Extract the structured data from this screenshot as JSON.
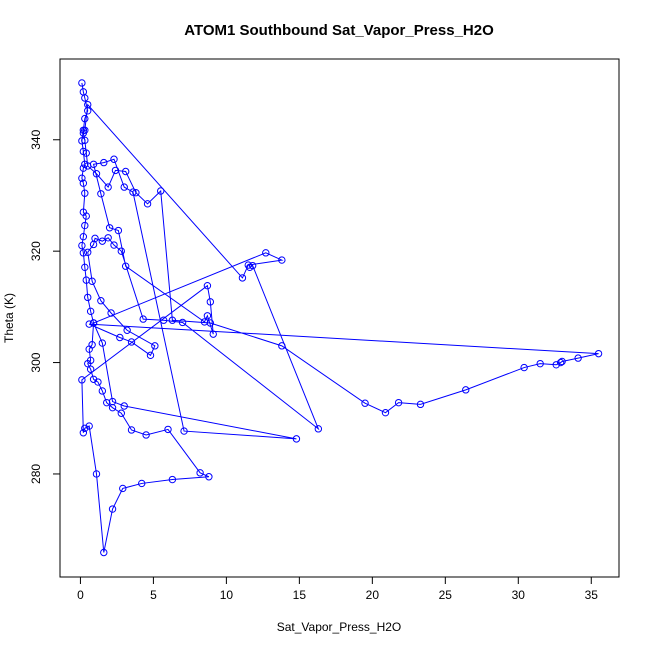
{
  "chart_data": {
    "type": "line",
    "title": "ATOM1 Southbound Sat_Vapor_Press_H2O",
    "xlabel": "Sat_Vapor_Press_H2O",
    "ylabel": "Theta (K)",
    "xlim": [
      -1.4,
      36.9
    ],
    "ylim": [
      261.5,
      354.5
    ],
    "xticks": [
      0,
      5,
      10,
      15,
      20,
      25,
      30,
      35
    ],
    "yticks": [
      280,
      300,
      320,
      340
    ],
    "grid": false,
    "legend": "none",
    "colors": {
      "series": "#0000ff",
      "axes": "#000000"
    },
    "series": [
      {
        "markers": "open-circle",
        "x": [
          0.1,
          0.2,
          0.3,
          0.5,
          0.3,
          0.2,
          0.1,
          0.2,
          0.3,
          0.2,
          0.1,
          0.2,
          0.3,
          0.2,
          0.4,
          0.3,
          0.2,
          0.1,
          0.2,
          0.3,
          0.4,
          0.5,
          0.7,
          0.9,
          0.8,
          0.6,
          0.7,
          0.5,
          0.7,
          0.9,
          1.2,
          1.5,
          1.8,
          2.2,
          2.8,
          3.5,
          4.5,
          6.0,
          8.2,
          8.8,
          6.3,
          4.2,
          2.9,
          2.2,
          1.6,
          1.1,
          0.6,
          0.3,
          0.2,
          0.1,
          8.7,
          8.9,
          9.1,
          8.7,
          8.5,
          3.1,
          2.6,
          2.0,
          1.4,
          0.9,
          1.6,
          2.3,
          3.0,
          3.6,
          7.1,
          14.8,
          3.0,
          2.2,
          1.5,
          0.9,
          12.7,
          13.8,
          11.5,
          11.1,
          0.5,
          0.3,
          0.2,
          0.3,
          0.4,
          0.5,
          1.1,
          1.9,
          2.4,
          3.1,
          3.8,
          4.6,
          5.5,
          6.3,
          8.9,
          13.8,
          19.5,
          20.9,
          21.8,
          23.3,
          26.4,
          30.4,
          31.5,
          32.6,
          32.9,
          33.0,
          34.1,
          35.5,
          0.6,
          2.7,
          3.5,
          4.8,
          5.1,
          3.2,
          2.1,
          1.4,
          0.8,
          0.5,
          0.9,
          1.0,
          1.5,
          1.9,
          2.3,
          2.8,
          4.3,
          5.7,
          7.0,
          16.3,
          11.8,
          11.6
        ],
        "y": [
          350.2,
          348.6,
          347.5,
          345.2,
          343.8,
          341.7,
          339.8,
          337.9,
          335.6,
          334.9,
          333.1,
          332.2,
          330.4,
          327.0,
          326.3,
          324.6,
          322.6,
          321.0,
          319.7,
          317.1,
          314.8,
          311.7,
          309.2,
          307.1,
          303.2,
          302.4,
          300.4,
          299.8,
          298.8,
          297.0,
          296.5,
          294.9,
          292.8,
          291.9,
          290.9,
          287.9,
          287.0,
          288.0,
          280.2,
          279.5,
          279.0,
          278.3,
          277.4,
          273.7,
          265.9,
          280.0,
          288.6,
          288.2,
          287.4,
          296.9,
          313.8,
          310.9,
          305.1,
          308.4,
          307.3,
          317.3,
          323.7,
          324.2,
          330.3,
          335.6,
          335.9,
          336.5,
          331.5,
          330.6,
          287.7,
          286.3,
          292.2,
          293.0,
          303.5,
          307.1,
          319.7,
          318.4,
          317.5,
          315.2,
          346.3,
          341.7,
          341.2,
          339.9,
          337.6,
          335.3,
          333.9,
          331.5,
          334.5,
          334.3,
          330.5,
          328.5,
          330.8,
          307.6,
          307.1,
          303.0,
          292.7,
          291.0,
          292.8,
          292.5,
          295.1,
          299.1,
          299.8,
          299.6,
          300.0,
          300.2,
          300.8,
          301.6,
          306.9,
          304.5,
          303.7,
          301.3,
          303.0,
          305.8,
          308.9,
          311.1,
          314.6,
          319.8,
          321.2,
          322.3,
          321.8,
          322.4,
          321.1,
          320.0,
          307.8,
          307.6,
          307.2,
          288.1,
          317.4,
          317.1
        ]
      }
    ]
  }
}
